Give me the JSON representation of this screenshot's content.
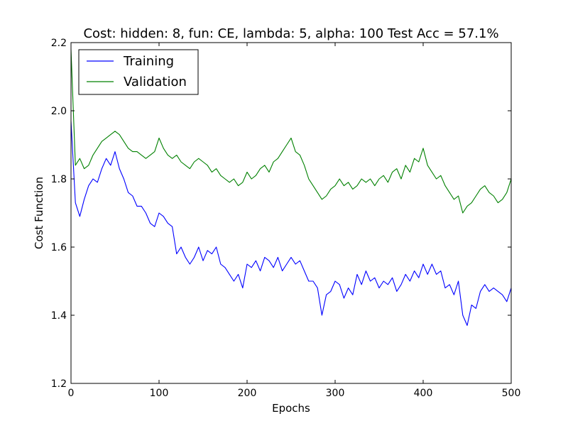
{
  "chart_data": {
    "type": "line",
    "title": "Cost: hidden: 8, fun: CE, lambda: 5, alpha: 100  Test Acc = 57.1%",
    "xlabel": "Epochs",
    "ylabel": "Cost Function",
    "xlim": [
      0,
      500
    ],
    "ylim": [
      1.2,
      2.2
    ],
    "xticks": [
      0,
      100,
      200,
      300,
      400,
      500
    ],
    "yticks": [
      1.2,
      1.4,
      1.6,
      1.8,
      2.0,
      2.2
    ],
    "xtick_labels": [
      "0",
      "100",
      "200",
      "300",
      "400",
      "500"
    ],
    "ytick_labels": [
      "1.2",
      "1.4",
      "1.6",
      "1.8",
      "2.0",
      "2.2"
    ],
    "grid": false,
    "legend": {
      "position": "top-left",
      "entries": [
        "Training",
        "Validation"
      ]
    },
    "series": [
      {
        "name": "Training",
        "color": "#0000ff",
        "x": [
          0,
          5,
          10,
          15,
          20,
          25,
          30,
          35,
          40,
          45,
          50,
          55,
          60,
          65,
          70,
          75,
          80,
          85,
          90,
          95,
          100,
          105,
          110,
          115,
          120,
          125,
          130,
          135,
          140,
          145,
          150,
          155,
          160,
          165,
          170,
          175,
          180,
          185,
          190,
          195,
          200,
          205,
          210,
          215,
          220,
          225,
          230,
          235,
          240,
          245,
          250,
          255,
          260,
          265,
          270,
          275,
          280,
          285,
          290,
          295,
          300,
          305,
          310,
          315,
          320,
          325,
          330,
          335,
          340,
          345,
          350,
          355,
          360,
          365,
          370,
          375,
          380,
          385,
          390,
          395,
          400,
          405,
          410,
          415,
          420,
          425,
          430,
          435,
          440,
          445,
          450,
          455,
          460,
          465,
          470,
          475,
          480,
          485,
          490,
          495,
          500
        ],
        "values": [
          1.97,
          1.73,
          1.69,
          1.74,
          1.78,
          1.8,
          1.79,
          1.83,
          1.86,
          1.84,
          1.88,
          1.83,
          1.8,
          1.76,
          1.75,
          1.72,
          1.72,
          1.7,
          1.67,
          1.66,
          1.7,
          1.69,
          1.67,
          1.66,
          1.58,
          1.6,
          1.57,
          1.55,
          1.57,
          1.6,
          1.56,
          1.59,
          1.58,
          1.6,
          1.55,
          1.54,
          1.52,
          1.5,
          1.52,
          1.48,
          1.55,
          1.54,
          1.56,
          1.53,
          1.57,
          1.56,
          1.54,
          1.57,
          1.53,
          1.55,
          1.57,
          1.55,
          1.56,
          1.53,
          1.5,
          1.5,
          1.48,
          1.4,
          1.46,
          1.47,
          1.5,
          1.49,
          1.45,
          1.48,
          1.46,
          1.52,
          1.49,
          1.53,
          1.5,
          1.51,
          1.48,
          1.5,
          1.49,
          1.51,
          1.47,
          1.49,
          1.52,
          1.5,
          1.53,
          1.51,
          1.55,
          1.52,
          1.55,
          1.52,
          1.53,
          1.48,
          1.49,
          1.46,
          1.5,
          1.4,
          1.37,
          1.43,
          1.42,
          1.47,
          1.49,
          1.47,
          1.48,
          1.47,
          1.46,
          1.44,
          1.48
        ]
      },
      {
        "name": "Validation",
        "color": "#008000",
        "x": [
          0,
          5,
          10,
          15,
          20,
          25,
          30,
          35,
          40,
          45,
          50,
          55,
          60,
          65,
          70,
          75,
          80,
          85,
          90,
          95,
          100,
          105,
          110,
          115,
          120,
          125,
          130,
          135,
          140,
          145,
          150,
          155,
          160,
          165,
          170,
          175,
          180,
          185,
          190,
          195,
          200,
          205,
          210,
          215,
          220,
          225,
          230,
          235,
          240,
          245,
          250,
          255,
          260,
          265,
          270,
          275,
          280,
          285,
          290,
          295,
          300,
          305,
          310,
          315,
          320,
          325,
          330,
          335,
          340,
          345,
          350,
          355,
          360,
          365,
          370,
          375,
          380,
          385,
          390,
          395,
          400,
          405,
          410,
          415,
          420,
          425,
          430,
          435,
          440,
          445,
          450,
          455,
          460,
          465,
          470,
          475,
          480,
          485,
          490,
          495,
          500
        ],
        "values": [
          2.18,
          1.84,
          1.86,
          1.83,
          1.84,
          1.87,
          1.89,
          1.91,
          1.92,
          1.93,
          1.94,
          1.93,
          1.91,
          1.89,
          1.88,
          1.88,
          1.87,
          1.86,
          1.87,
          1.88,
          1.92,
          1.89,
          1.87,
          1.86,
          1.87,
          1.85,
          1.84,
          1.83,
          1.85,
          1.86,
          1.85,
          1.84,
          1.82,
          1.83,
          1.81,
          1.8,
          1.79,
          1.8,
          1.78,
          1.79,
          1.82,
          1.8,
          1.81,
          1.83,
          1.84,
          1.82,
          1.85,
          1.86,
          1.88,
          1.9,
          1.92,
          1.88,
          1.87,
          1.84,
          1.8,
          1.78,
          1.76,
          1.74,
          1.75,
          1.77,
          1.78,
          1.8,
          1.78,
          1.79,
          1.77,
          1.78,
          1.8,
          1.79,
          1.8,
          1.78,
          1.8,
          1.81,
          1.79,
          1.82,
          1.83,
          1.8,
          1.84,
          1.82,
          1.86,
          1.85,
          1.89,
          1.84,
          1.82,
          1.8,
          1.81,
          1.78,
          1.76,
          1.74,
          1.75,
          1.7,
          1.72,
          1.73,
          1.75,
          1.77,
          1.78,
          1.76,
          1.75,
          1.73,
          1.74,
          1.76,
          1.8
        ]
      }
    ]
  }
}
